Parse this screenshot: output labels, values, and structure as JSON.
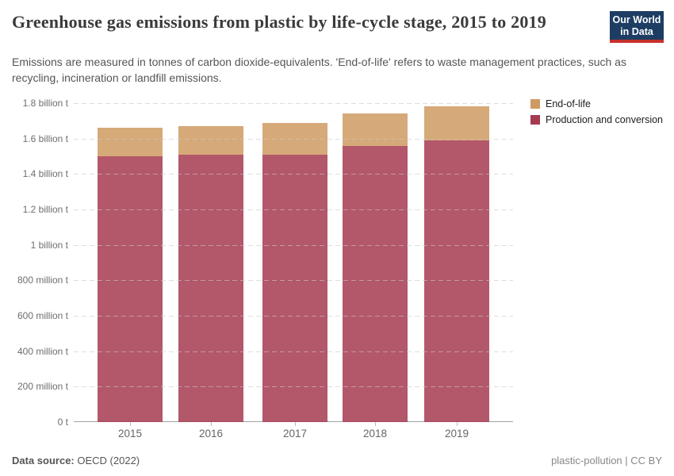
{
  "header": {
    "logo": {
      "line1": "Our World",
      "line2": "in Data",
      "bg_color": "#1D3D63",
      "accent_color": "#C7302B"
    }
  },
  "legend": {
    "items": [
      {
        "label": "End-of-life",
        "color": "#CF9A62"
      },
      {
        "label": "Production and conversion",
        "color": "#A63A50"
      }
    ]
  },
  "chart_data": {
    "type": "bar",
    "stacked": true,
    "title": "Greenhouse gas emissions from plastic by life-cycle stage, 2015 to 2019",
    "subtitle": "Emissions are measured in tonnes of carbon dioxide-equivalents. 'End-of-life' refers to waste management practices, such as recycling, incineration or landfill emissions.",
    "categories": [
      "2015",
      "2016",
      "2017",
      "2018",
      "2019"
    ],
    "series": [
      {
        "name": "Production and conversion",
        "color": "#A63A50",
        "values_billion_tonnes": [
          1.5,
          1.51,
          1.51,
          1.56,
          1.59
        ]
      },
      {
        "name": "End-of-life",
        "color": "#CF9A62",
        "values_billion_tonnes": [
          0.16,
          0.16,
          0.18,
          0.18,
          0.19
        ]
      }
    ],
    "unit": "tonnes of carbon dioxide-equivalents",
    "ylim_billion_tonnes": [
      0,
      1.8
    ],
    "yticks": [
      {
        "value": 0,
        "label": "0 t"
      },
      {
        "value": 0.2,
        "label": "200 million t"
      },
      {
        "value": 0.4,
        "label": "400 million t"
      },
      {
        "value": 0.6,
        "label": "600 million t"
      },
      {
        "value": 0.8,
        "label": "800 million t"
      },
      {
        "value": 1,
        "label": "1 billion t"
      },
      {
        "value": 1.2,
        "label": "1.2 billion t"
      },
      {
        "value": 1.4,
        "label": "1.4 billion t"
      },
      {
        "value": 1.6,
        "label": "1.6 billion t"
      },
      {
        "value": 1.8,
        "label": "1.8 billion t"
      }
    ],
    "grid": "dashed-horizontal",
    "legend_position": "top-right"
  },
  "footer": {
    "datasource_label": "Data source:",
    "datasource_value": "OECD (2022)",
    "license": "plastic-pollution | CC BY"
  }
}
